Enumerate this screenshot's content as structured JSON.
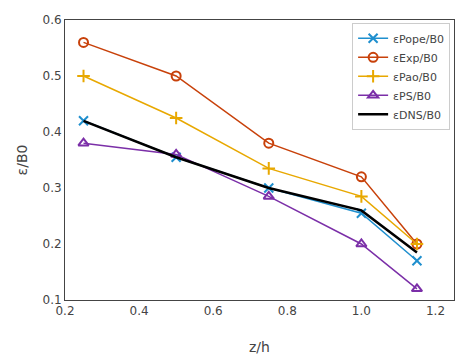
{
  "chart_data": {
    "type": "line",
    "xlabel": "z/h",
    "ylabel": "ε/B0",
    "x": [
      0.25,
      0.5,
      0.75,
      1.0,
      1.15
    ],
    "series": [
      {
        "name": "εPope/B0",
        "color": "#1f8fce",
        "marker": "x",
        "values": [
          0.42,
          0.355,
          0.3,
          0.255,
          0.17
        ]
      },
      {
        "name": "εExp/B0",
        "color": "#c8410a",
        "marker": "circle",
        "values": [
          0.56,
          0.5,
          0.38,
          0.32,
          0.2
        ]
      },
      {
        "name": "εPao/B0",
        "color": "#e8a800",
        "marker": "plus",
        "values": [
          0.5,
          0.425,
          0.335,
          0.285,
          0.2
        ]
      },
      {
        "name": "εPS/B0",
        "color": "#7b2fa8",
        "marker": "triangle",
        "values": [
          0.38,
          0.36,
          0.285,
          0.2,
          0.12
        ]
      },
      {
        "name": "εDNS/B0",
        "color": "#000000",
        "values": [
          0.42,
          0.355,
          0.3,
          0.26,
          0.185
        ]
      }
    ],
    "xlim": [
      0.2,
      1.25
    ],
    "ylim": [
      0.1,
      0.6
    ],
    "xticks": [
      0.2,
      0.4,
      0.6,
      0.8,
      {
        "value": 1.0,
        "label": "1.0"
      },
      1.2
    ],
    "yticks": [
      0.1,
      0.2,
      0.3,
      0.4,
      0.5,
      0.6
    ],
    "grid": false,
    "legend": "upper right"
  }
}
